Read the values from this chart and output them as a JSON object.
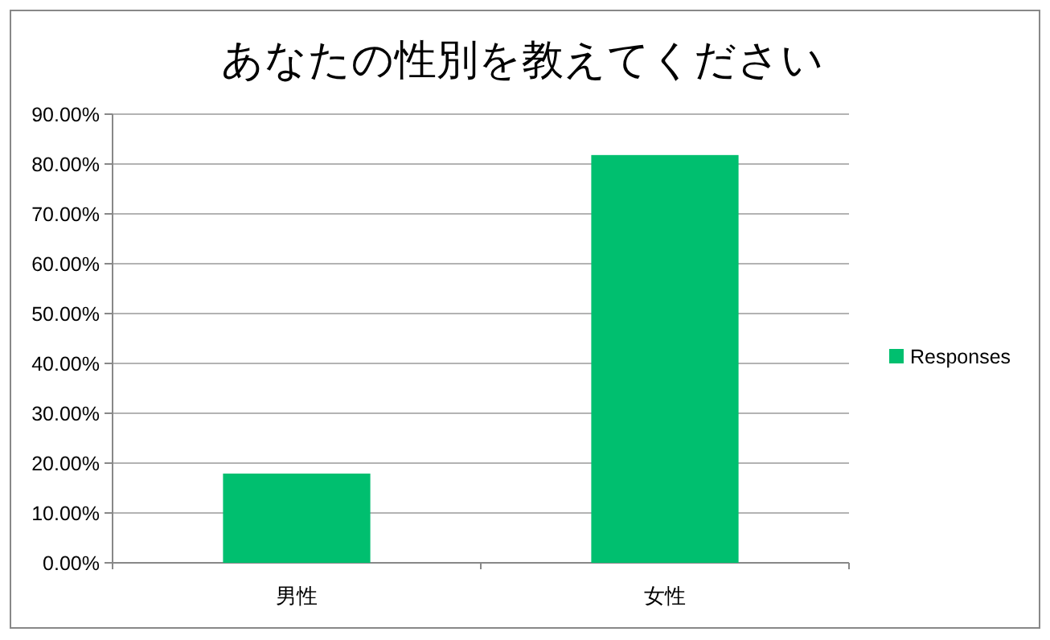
{
  "chart_data": {
    "type": "bar",
    "title": "あなたの性別を教えてください",
    "categories": [
      "男性",
      "女性"
    ],
    "series": [
      {
        "name": "Responses",
        "color": "#00bf6f",
        "values": [
          17.9,
          81.8
        ]
      }
    ],
    "ylim": [
      0,
      90
    ],
    "yticks": [
      {
        "value": 0,
        "label": "0.00%"
      },
      {
        "value": 10,
        "label": "10.00%"
      },
      {
        "value": 20,
        "label": "20.00%"
      },
      {
        "value": 30,
        "label": "30.00%"
      },
      {
        "value": 40,
        "label": "40.00%"
      },
      {
        "value": 50,
        "label": "50.00%"
      },
      {
        "value": 60,
        "label": "60.00%"
      },
      {
        "value": 70,
        "label": "70.00%"
      },
      {
        "value": 80,
        "label": "80.00%"
      },
      {
        "value": 90,
        "label": "90.00%"
      }
    ],
    "grid": "y",
    "legend": "right"
  }
}
